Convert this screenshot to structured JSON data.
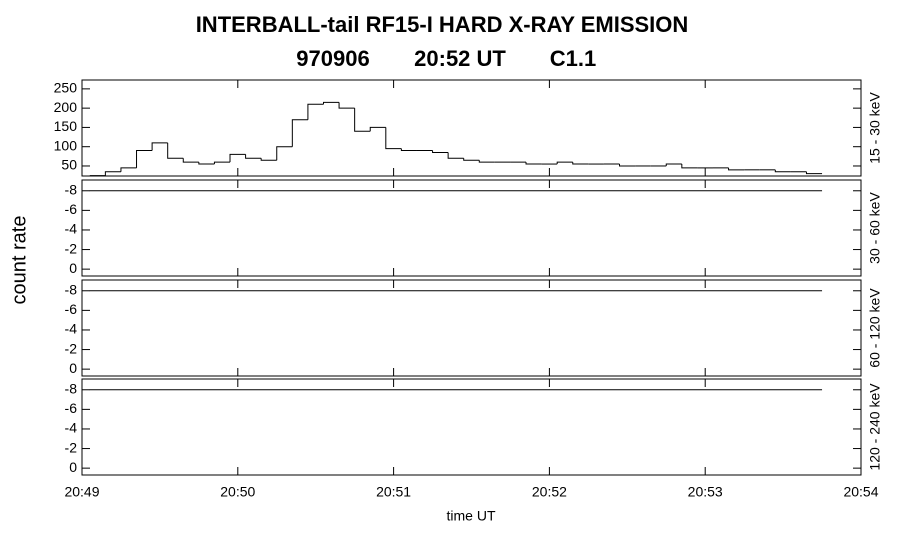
{
  "title": "INTERBALL-tail  RF15-I  HARD  X-RAY  EMISSION",
  "subtitle": [
    "970906",
    "20:52 UT",
    "C1.1"
  ],
  "ylabel": "count rate",
  "xlabel": "time UT",
  "xlim": [
    1249,
    1254
  ],
  "xticks": [
    {
      "value": 1249,
      "label": "20:49"
    },
    {
      "value": 1250,
      "label": "20:50"
    },
    {
      "value": 1251,
      "label": "20:51"
    },
    {
      "value": 1252,
      "label": "20:52"
    },
    {
      "value": 1253,
      "label": "20:53"
    },
    {
      "value": 1254,
      "label": "20:54"
    }
  ],
  "chart_data": [
    {
      "type": "histogram",
      "ylabel": "15 - 30 keV",
      "color": "#000000",
      "bins": [
        1249.05,
        1249.15,
        1249.25,
        1249.35,
        1249.45,
        1249.55,
        1249.65,
        1249.75,
        1249.85,
        1249.95,
        1250.05,
        1250.15,
        1250.25,
        1250.35,
        1250.45,
        1250.55,
        1250.65,
        1250.75,
        1250.85,
        1250.95,
        1251.05,
        1251.15,
        1251.25,
        1251.35,
        1251.45,
        1251.55,
        1251.65,
        1251.75,
        1251.85,
        1251.95,
        1252.05,
        1252.15,
        1252.25,
        1252.35,
        1252.45,
        1252.55,
        1252.65,
        1252.75,
        1252.85,
        1252.95,
        1253.05,
        1253.15,
        1253.25,
        1253.35,
        1253.45,
        1253.55,
        1253.65,
        1253.75
      ],
      "values": [
        25,
        35,
        45,
        90,
        110,
        70,
        60,
        55,
        60,
        80,
        70,
        65,
        100,
        170,
        210,
        215,
        200,
        140,
        150,
        95,
        90,
        90,
        85,
        70,
        65,
        60,
        60,
        60,
        55,
        55,
        60,
        55,
        55,
        55,
        50,
        50,
        50,
        55,
        45,
        45,
        45,
        40,
        40,
        40,
        35,
        35,
        30
      ],
      "ylim": [
        24,
        273
      ],
      "yticks": [
        50,
        100,
        150,
        200,
        250
      ]
    },
    {
      "type": "line",
      "ylabel": "30 - 60 keV",
      "color": "#000000",
      "x": [
        1249.05,
        1253.75
      ],
      "values": [
        -8,
        -8
      ],
      "ylim": [
        0.7,
        -9.1
      ],
      "yticks": [
        0,
        -2,
        -4,
        -6,
        -8
      ]
    },
    {
      "type": "line",
      "ylabel": "60 - 120 keV",
      "color": "#000000",
      "x": [
        1249.05,
        1253.75
      ],
      "values": [
        -8,
        -8
      ],
      "ylim": [
        0.7,
        -9.1
      ],
      "yticks": [
        0,
        -2,
        -4,
        -6,
        -8
      ]
    },
    {
      "type": "line",
      "ylabel": "120 - 240 keV",
      "color": "#000000",
      "x": [
        1249.05,
        1253.75
      ],
      "values": [
        -8,
        -8
      ],
      "ylim": [
        0.7,
        -9.1
      ],
      "yticks": [
        0,
        -2,
        -4,
        -6,
        -8
      ]
    }
  ]
}
